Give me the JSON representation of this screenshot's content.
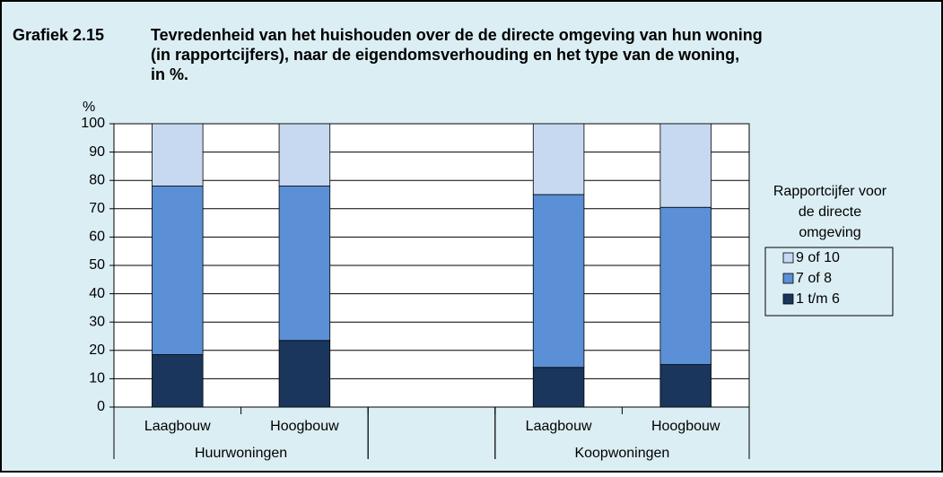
{
  "chart_data": {
    "type": "stacked_bar",
    "title_label": "Grafiek 2.15",
    "title": [
      "Tevredenheid van het huishouden over de de directe omgeving van hun woning",
      "(in rapportcijfers), naar de eigendomsverhouding en het type van de woning,",
      "in %."
    ],
    "y_label": "%",
    "categories": [
      "Laagbouw",
      "Hoogbouw",
      null,
      "Laagbouw",
      "Hoogbouw"
    ],
    "groups": [
      {
        "name": "Huurwoningen",
        "size": 2
      },
      {
        "name": null,
        "size": 1
      },
      {
        "name": "Koopwoningen",
        "size": 2
      }
    ],
    "series": [
      {
        "name": "1 t/m 6",
        "color": "#1b365d",
        "values": [
          18.5,
          23.5,
          null,
          14,
          15
        ]
      },
      {
        "name": "7 of 8",
        "color": "#5b8fd6",
        "values": [
          59.5,
          54.5,
          null,
          61,
          55.5
        ]
      },
      {
        "name": "9 of 10",
        "color": "#c6d9f1",
        "values": [
          22,
          22,
          null,
          25,
          29.5
        ]
      }
    ],
    "legend_title": [
      "Rapportcijfer voor",
      "de directe",
      "omgeving"
    ],
    "ylim": [
      0,
      100
    ],
    "yticks": [
      0,
      10,
      20,
      30,
      40,
      50,
      60,
      70,
      80,
      90,
      100
    ],
    "grid": true
  }
}
